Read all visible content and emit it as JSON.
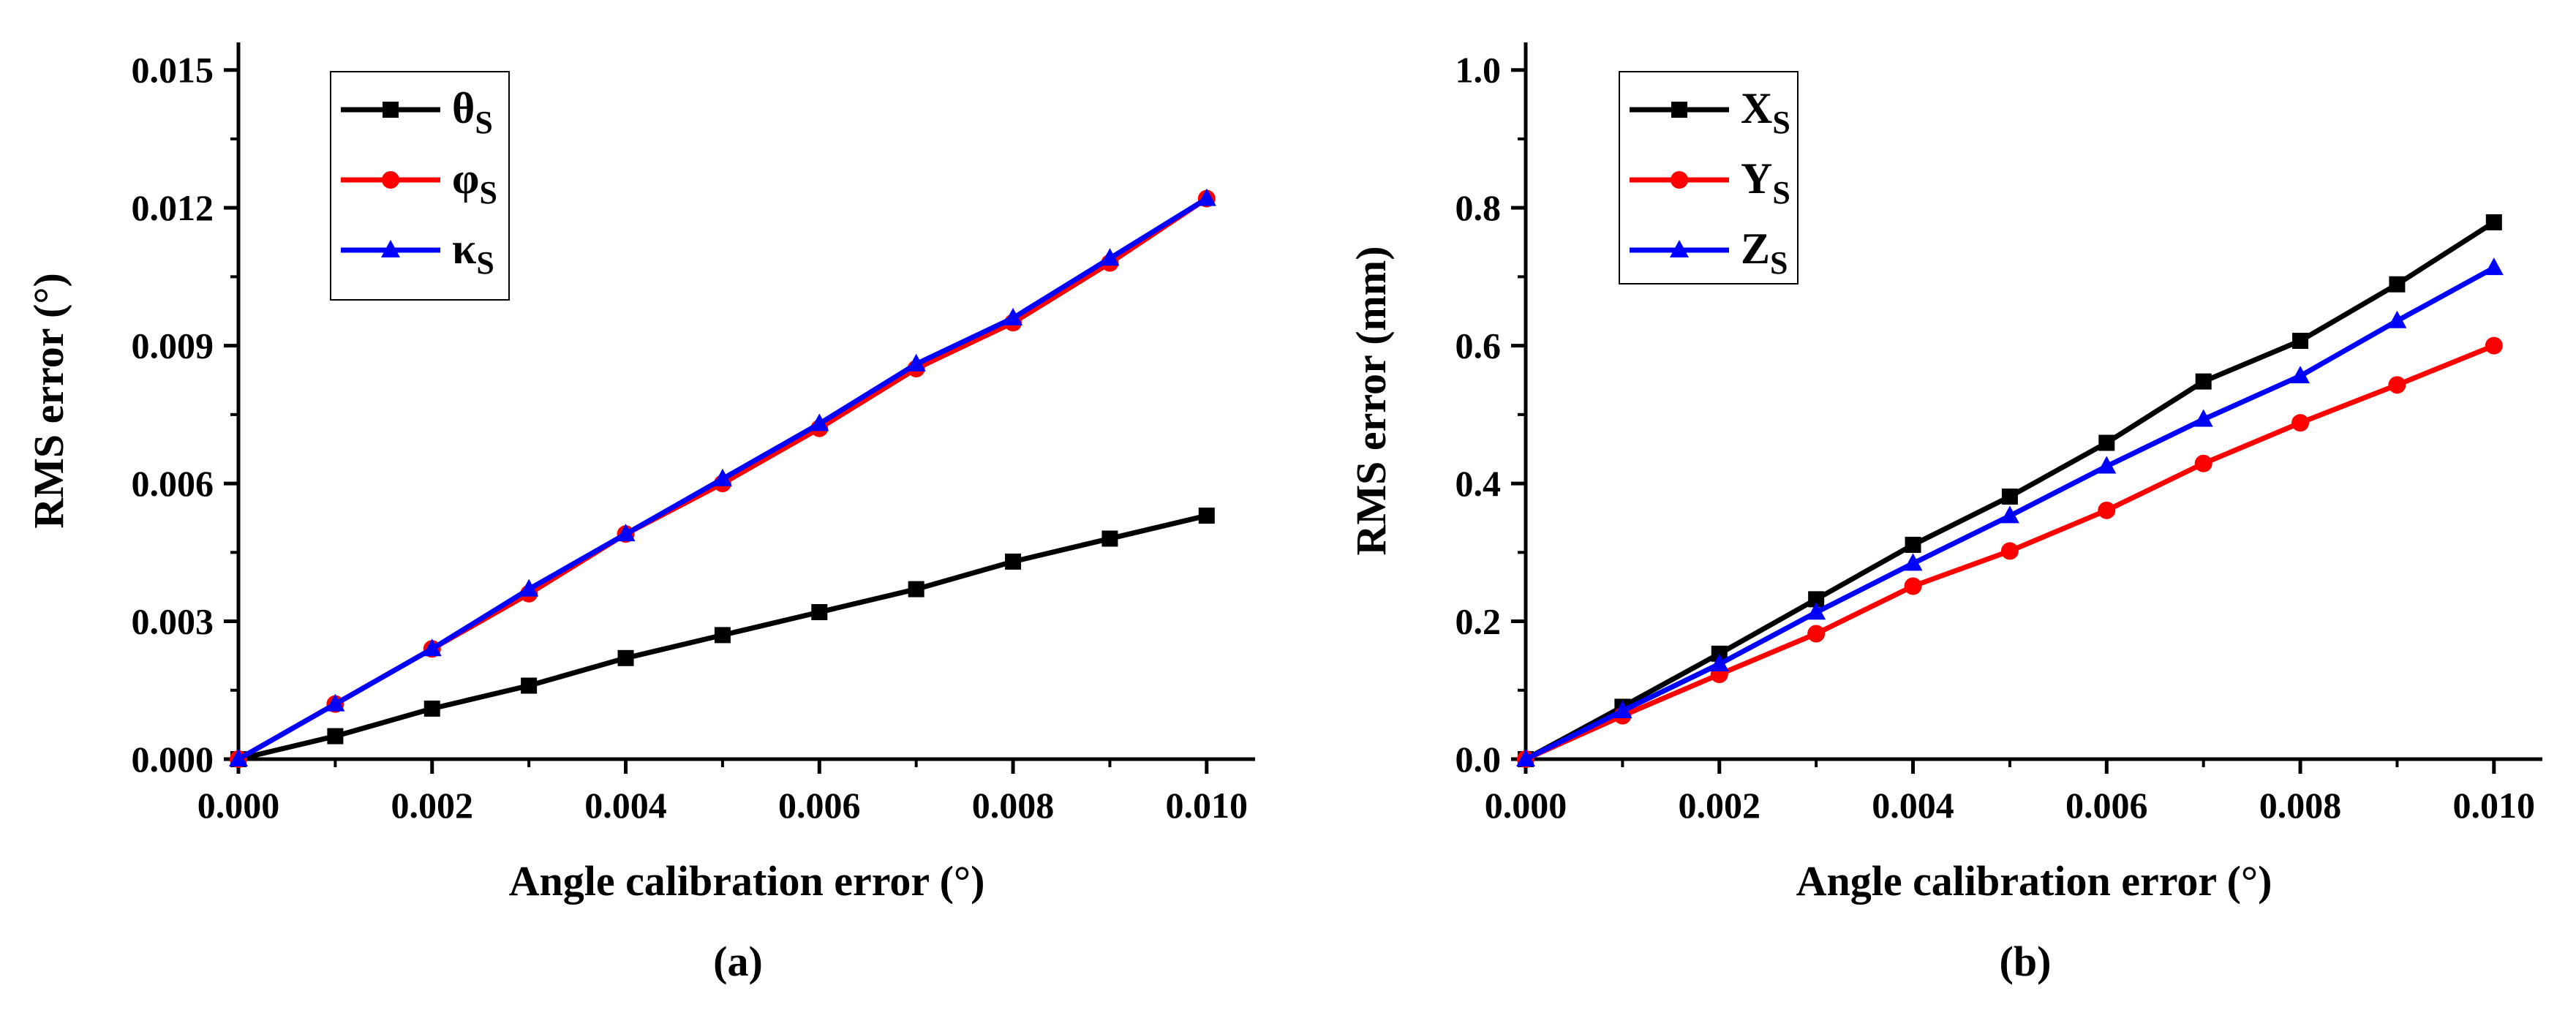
{
  "chart_data": [
    {
      "type": "line",
      "panel_label": "(a)",
      "xlabel": "Angle calibration error (°)",
      "ylabel": "RMS error (°)",
      "xlim": [
        0,
        0.0105
      ],
      "ylim": [
        0,
        0.0156
      ],
      "xticks": [
        0,
        0.002,
        0.004,
        0.006,
        0.008,
        0.01
      ],
      "xtick_labels": [
        "0.000",
        "0.002",
        "0.004",
        "0.006",
        "0.008",
        "0.010"
      ],
      "yticks": [
        0,
        0.003,
        0.006,
        0.009,
        0.012,
        0.015
      ],
      "ytick_labels": [
        "0.000",
        "0.003",
        "0.006",
        "0.009",
        "0.012",
        "0.015"
      ],
      "legend_position": "top-left",
      "x": [
        0,
        0.001,
        0.002,
        0.003,
        0.004,
        0.005,
        0.006,
        0.007,
        0.008,
        0.009,
        0.01
      ],
      "series": [
        {
          "name": "θ",
          "sub": "S",
          "color": "#000000",
          "marker": "square",
          "values": [
            0,
            0.0005,
            0.0011,
            0.0016,
            0.0022,
            0.0027,
            0.0032,
            0.0037,
            0.0043,
            0.0048,
            0.0053
          ]
        },
        {
          "name": "φ",
          "sub": "S",
          "color": "#ff0000",
          "marker": "circle",
          "values": [
            0,
            0.0012,
            0.0024,
            0.0036,
            0.0049,
            0.006,
            0.0072,
            0.0085,
            0.0095,
            0.0108,
            0.0122
          ]
        },
        {
          "name": "κ",
          "sub": "S",
          "color": "#0000ff",
          "marker": "triangle",
          "values": [
            0,
            0.0012,
            0.0024,
            0.0037,
            0.0049,
            0.0061,
            0.0073,
            0.0086,
            0.0096,
            0.0109,
            0.0122
          ]
        }
      ]
    },
    {
      "type": "line",
      "panel_label": "(b)",
      "xlabel": "Angle calibration error (°)",
      "ylabel": "RMS error (mm)",
      "xlim": [
        0,
        0.0105
      ],
      "ylim": [
        0,
        1.04
      ],
      "xticks": [
        0,
        0.002,
        0.004,
        0.006,
        0.008,
        0.01
      ],
      "xtick_labels": [
        "0.000",
        "0.002",
        "0.004",
        "0.006",
        "0.008",
        "0.010"
      ],
      "yticks": [
        0,
        0.2,
        0.4,
        0.6,
        0.8,
        1.0
      ],
      "ytick_labels": [
        "0.0",
        "0.2",
        "0.4",
        "0.6",
        "0.8",
        "1.0"
      ],
      "legend_position": "top-left",
      "x": [
        0,
        0.001,
        0.002,
        0.003,
        0.004,
        0.005,
        0.006,
        0.007,
        0.008,
        0.009,
        0.01
      ],
      "series": [
        {
          "name": "X",
          "sub": "S",
          "color": "#000000",
          "marker": "square",
          "values": [
            0,
            0.076,
            0.153,
            0.232,
            0.311,
            0.381,
            0.459,
            0.548,
            0.607,
            0.689,
            0.779
          ]
        },
        {
          "name": "Y",
          "sub": "S",
          "color": "#ff0000",
          "marker": "circle",
          "values": [
            0,
            0.063,
            0.123,
            0.182,
            0.251,
            0.302,
            0.361,
            0.429,
            0.488,
            0.543,
            0.6
          ]
        },
        {
          "name": "Z",
          "sub": "S",
          "color": "#0000ff",
          "marker": "triangle",
          "values": [
            0,
            0.07,
            0.138,
            0.213,
            0.284,
            0.353,
            0.425,
            0.493,
            0.556,
            0.636,
            0.713
          ]
        }
      ]
    }
  ]
}
